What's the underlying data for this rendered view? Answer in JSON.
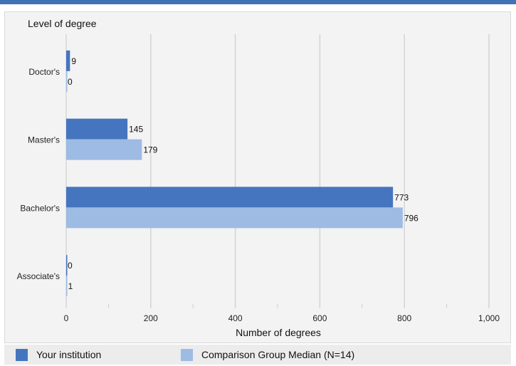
{
  "chart_data": {
    "type": "bar",
    "orientation": "horizontal",
    "title": "Level of degree",
    "xlabel": "Number of degrees",
    "ylabel": "",
    "categories": [
      "Doctor's",
      "Master's",
      "Bachelor's",
      "Associate's"
    ],
    "series": [
      {
        "name": "Your institution",
        "values": [
          9,
          145,
          773,
          0
        ],
        "color": "#4575be"
      },
      {
        "name": "Comparison Group Median (N=14)",
        "values": [
          0,
          179,
          796,
          1
        ],
        "color": "#9dbbe3"
      }
    ],
    "xlim": [
      0,
      1000
    ],
    "xticks": [
      0,
      200,
      400,
      600,
      800,
      1000
    ],
    "xtick_labels": [
      "0",
      "200",
      "400",
      "600",
      "800",
      "1,000"
    ],
    "grid": true,
    "legend_placement": "bottom"
  }
}
